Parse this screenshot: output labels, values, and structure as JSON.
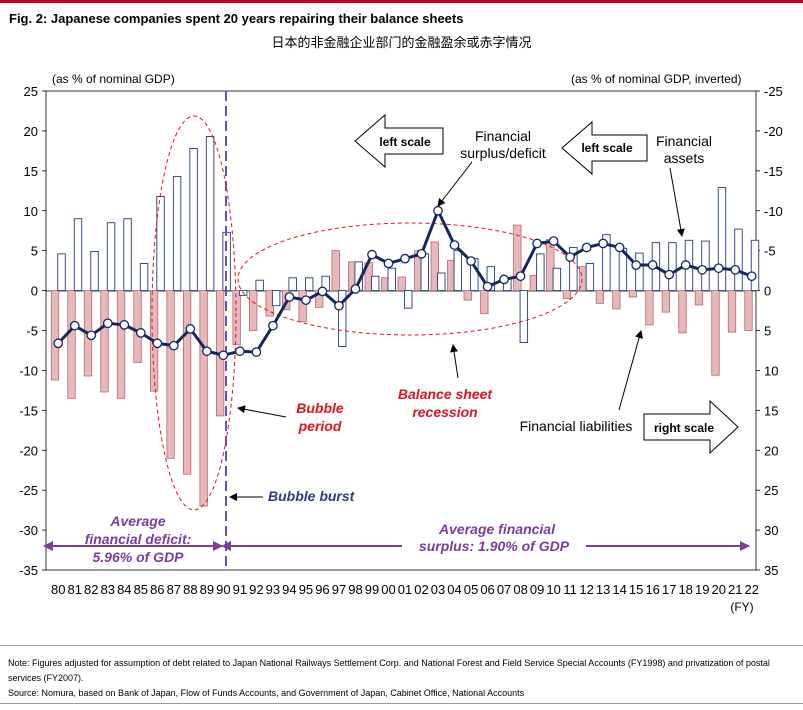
{
  "header": {
    "title": "Fig. 2: Japanese companies spent 20 years repairing their balance sheets",
    "subtitle": "日本的非金融企业部门的金融盈余或赤字情况"
  },
  "chart_data": {
    "type": "bar",
    "left_axis_label": "(as % of nominal GDP)",
    "right_axis_label": "(as % of nominal GDP, inverted)",
    "xlabel": "(FY)",
    "categories": [
      "80",
      "81",
      "82",
      "83",
      "84",
      "85",
      "86",
      "87",
      "88",
      "89",
      "90",
      "91",
      "92",
      "93",
      "94",
      "95",
      "96",
      "97",
      "98",
      "99",
      "00",
      "01",
      "02",
      "03",
      "04",
      "05",
      "06",
      "07",
      "08",
      "09",
      "10",
      "11",
      "12",
      "13",
      "14",
      "15",
      "16",
      "17",
      "18",
      "19",
      "20",
      "21",
      "22"
    ],
    "ylim_left": [
      -35,
      25
    ],
    "ylim_right_inverted": [
      35,
      -25
    ],
    "left_ticks": [
      "25",
      "20",
      "15",
      "10",
      "5",
      "0",
      "-5",
      "-10",
      "-15",
      "-20",
      "-25",
      "-30",
      "-35"
    ],
    "right_ticks": [
      "-25",
      "-20",
      "-15",
      "-10",
      "-5",
      "0",
      "5",
      "10",
      "15",
      "20",
      "25",
      "30",
      "35"
    ],
    "series": [
      {
        "name": "Financial assets",
        "axis": "right (inverted)",
        "style": "outlined bar",
        "values": [
          -4.6,
          -9,
          -4.9,
          -8.5,
          -9,
          -3.4,
          -11.8,
          -14.3,
          -17.8,
          -19.3,
          -7.3,
          0.6,
          -1.3,
          1.9,
          -1.6,
          -1.6,
          -1.8,
          7,
          -3.6,
          -1.8,
          -2.8,
          2.2,
          -4.6,
          -2.2,
          -5,
          -4,
          -3,
          -1.6,
          6.5,
          -4.6,
          -2.8,
          -5.4,
          -3.4,
          -7,
          -5.3,
          -4.7,
          -6,
          -6,
          -6.3,
          -6.2,
          -12.9,
          -7.7,
          -6.3
        ]
      },
      {
        "name": "Financial liabilities",
        "axis": "right (inverted)",
        "style": "filled bar",
        "values": [
          11.2,
          13.5,
          10.7,
          12.7,
          13.5,
          9,
          12.6,
          21,
          23,
          27,
          15.7,
          6.8,
          5,
          3.2,
          2.4,
          3.9,
          2.1,
          -5,
          -3.6,
          -3.5,
          -1.6,
          -1.7,
          -5,
          -6.1,
          -3.8,
          1.2,
          2.9,
          0.1,
          -8.2,
          -1.9,
          -6.4,
          1,
          -3,
          1.6,
          2.3,
          0.8,
          4.3,
          2.7,
          5.3,
          1.8,
          10.6,
          5.2,
          5
        ]
      },
      {
        "name": "Financial surplus/deficit",
        "axis": "left",
        "style": "line with markers",
        "values": [
          -6.6,
          -4.4,
          -5.6,
          -4.1,
          -4.3,
          -5.3,
          -6.6,
          -6.9,
          -4.8,
          -7.6,
          -8.1,
          -7.6,
          -7.7,
          -4.4,
          -0.8,
          -1.2,
          -0.1,
          -1.9,
          0.2,
          4.5,
          3.4,
          4,
          4.6,
          10,
          5.7,
          3.7,
          0.5,
          1.4,
          1.8,
          5.9,
          6.2,
          4.2,
          5.4,
          5.9,
          5.4,
          3.2,
          3.2,
          2,
          3.2,
          2.6,
          2.8,
          2.6,
          1.8
        ]
      }
    ],
    "annotations": {
      "left_scale_1": "left scale",
      "left_scale_2": "left scale",
      "right_scale": "right scale",
      "surplus_label_1": "Financial",
      "surplus_label_2": "surplus/deficit",
      "assets_label_1": "Financial",
      "assets_label_2": "assets",
      "bubble_period_1": "Bubble",
      "bubble_period_2": "period",
      "bubble_burst": "Bubble burst",
      "bsr_1": "Balance sheet",
      "bsr_2": "recession",
      "liabilities_label": "Financial liabilities",
      "avg_deficit_1": "Average",
      "avg_deficit_2": "financial deficit:",
      "avg_deficit_3": "5.96% of GDP",
      "avg_surplus_1": "Average financial",
      "avg_surplus_2": "surplus: 1.90% of GDP"
    },
    "colors": {
      "assets_outline": "#1f3d7a",
      "liabilities_fill": "#e8b7b9",
      "liabilities_outline": "#b46a6f",
      "surplus_line": "#13275f",
      "annotation_red": "#e0141e",
      "annotation_purple": "#7c3c9a",
      "bubble_burst_text": "#2b3f7a"
    },
    "grid": false,
    "legend": "none"
  },
  "notes": {
    "note": "Note: Figures adjusted for assumption of debt related to Japan National Railways Settlement Corp. and National Forest and Field Service Special Accounts (FY1998) and privatization of postal services (FY2007).",
    "source": "Source: Nomura, based on Bank of Japan, Flow of Funds Accounts, and Government of Japan, Cabinet Office, National Accounts"
  }
}
